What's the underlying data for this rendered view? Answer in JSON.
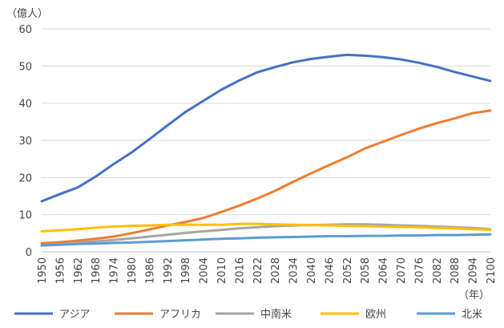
{
  "chart_data": {
    "type": "line",
    "y_unit": "（億人）",
    "x_unit": "（年）",
    "ylim": [
      0,
      60
    ],
    "xlim": [
      1950,
      2100
    ],
    "y_ticks": [
      "0",
      "10",
      "20",
      "30",
      "40",
      "50",
      "60"
    ],
    "x_ticks": [
      "1950",
      "1956",
      "1962",
      "1968",
      "1974",
      "1980",
      "1986",
      "1992",
      "1998",
      "2004",
      "2010",
      "2016",
      "2022",
      "2028",
      "2034",
      "2040",
      "2046",
      "2052",
      "2058",
      "2064",
      "2070",
      "2076",
      "2082",
      "2088",
      "2094",
      "2100"
    ],
    "x": [
      1950,
      1956,
      1962,
      1968,
      1974,
      1980,
      1986,
      1992,
      1998,
      2004,
      2010,
      2016,
      2022,
      2028,
      2034,
      2040,
      2046,
      2052,
      2058,
      2064,
      2070,
      2076,
      2082,
      2088,
      2094,
      2100
    ],
    "grid": true,
    "legend_position": "bottom",
    "series": [
      {
        "name": "アジア",
        "color": "#4472C4",
        "values": [
          13.6,
          15.5,
          17.3,
          20.2,
          23.6,
          26.7,
          30.3,
          34.0,
          37.6,
          40.6,
          43.6,
          46.1,
          48.3,
          49.7,
          51.0,
          51.9,
          52.5,
          53.0,
          52.8,
          52.4,
          51.8,
          50.9,
          49.8,
          48.4,
          47.2,
          46.0
        ]
      },
      {
        "name": "アフリカ",
        "color": "#ED7D31",
        "values": [
          2.3,
          2.6,
          3.0,
          3.5,
          4.1,
          5.0,
          6.0,
          7.1,
          8.0,
          9.1,
          10.7,
          12.4,
          14.3,
          16.4,
          18.8,
          21.1,
          23.3,
          25.4,
          27.8,
          29.6,
          31.4,
          33.1,
          34.6,
          35.9,
          37.3,
          38.0
        ]
      },
      {
        "name": "中南米",
        "color": "#A5A5A5",
        "values": [
          1.7,
          2.0,
          2.4,
          2.8,
          3.2,
          3.6,
          4.1,
          4.6,
          5.1,
          5.5,
          5.9,
          6.3,
          6.6,
          6.9,
          7.1,
          7.2,
          7.3,
          7.4,
          7.4,
          7.3,
          7.1,
          7.0,
          6.8,
          6.6,
          6.4,
          6.1
        ]
      },
      {
        "name": "欧州",
        "color": "#FFC000",
        "values": [
          5.5,
          5.8,
          6.1,
          6.5,
          6.8,
          7.0,
          7.1,
          7.3,
          7.3,
          7.3,
          7.3,
          7.5,
          7.5,
          7.4,
          7.3,
          7.2,
          7.1,
          7.0,
          6.9,
          6.8,
          6.7,
          6.6,
          6.4,
          6.3,
          6.1,
          5.9
        ]
      },
      {
        "name": "北米",
        "color": "#5B9BD5",
        "values": [
          1.7,
          1.9,
          2.1,
          2.2,
          2.4,
          2.5,
          2.7,
          2.9,
          3.1,
          3.3,
          3.5,
          3.6,
          3.8,
          3.9,
          4.0,
          4.1,
          4.2,
          4.2,
          4.3,
          4.3,
          4.4,
          4.4,
          4.5,
          4.5,
          4.6,
          4.7
        ]
      }
    ]
  }
}
